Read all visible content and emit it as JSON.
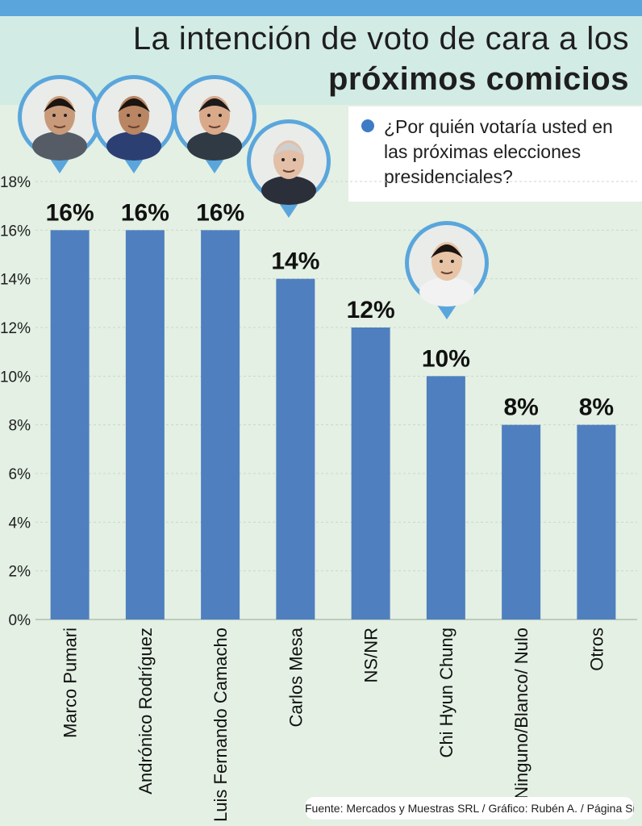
{
  "header": {
    "title_line1": "La intención de voto de cara a los",
    "title_line2": "próximos comicios"
  },
  "legend": {
    "question": "¿Por quién votaría usted en las próximas elecciones presidenciales?",
    "dot_color": "#3d7cc4"
  },
  "footer": {
    "source": "Fuente: Mercados y Muestras SRL / Gráfico: Rubén A. / Página Siete"
  },
  "colors": {
    "bar": "#4f7fbf",
    "background": "#e3f0e3",
    "header_band": "#d2ebe4",
    "top_bar": "#5aa6dc",
    "photo_ring": "#5aa6dc"
  },
  "chart_data": {
    "type": "bar",
    "categories": [
      "Marco Pumari",
      "Andrónico Rodríguez",
      "Luis Fernando Camacho",
      "Carlos Mesa",
      "NS/NR",
      "Chi Hyun Chung",
      "Ninguno/Blanco/ Nulo",
      "Otros"
    ],
    "values": [
      16,
      16,
      16,
      14,
      12,
      10,
      8,
      8
    ],
    "data_labels": [
      "16%",
      "16%",
      "16%",
      "14%",
      "12%",
      "10%",
      "8%",
      "8%"
    ],
    "ylim": [
      0,
      18
    ],
    "yticks": [
      0,
      2,
      4,
      6,
      8,
      10,
      12,
      14,
      16,
      18
    ],
    "ytick_labels": [
      "0%",
      "2%",
      "4%",
      "6%",
      "8%",
      "10%",
      "12%",
      "14%",
      "16%",
      "18%"
    ],
    "title": "La intención de voto de cara a los próximos comicios",
    "xlabel": "",
    "ylabel": "",
    "grid": true,
    "photos": [
      "Marco Pumari",
      "Andrónico Rodríguez",
      "Luis Fernando Camacho",
      "Carlos Mesa",
      "Chi Hyun Chung"
    ]
  }
}
